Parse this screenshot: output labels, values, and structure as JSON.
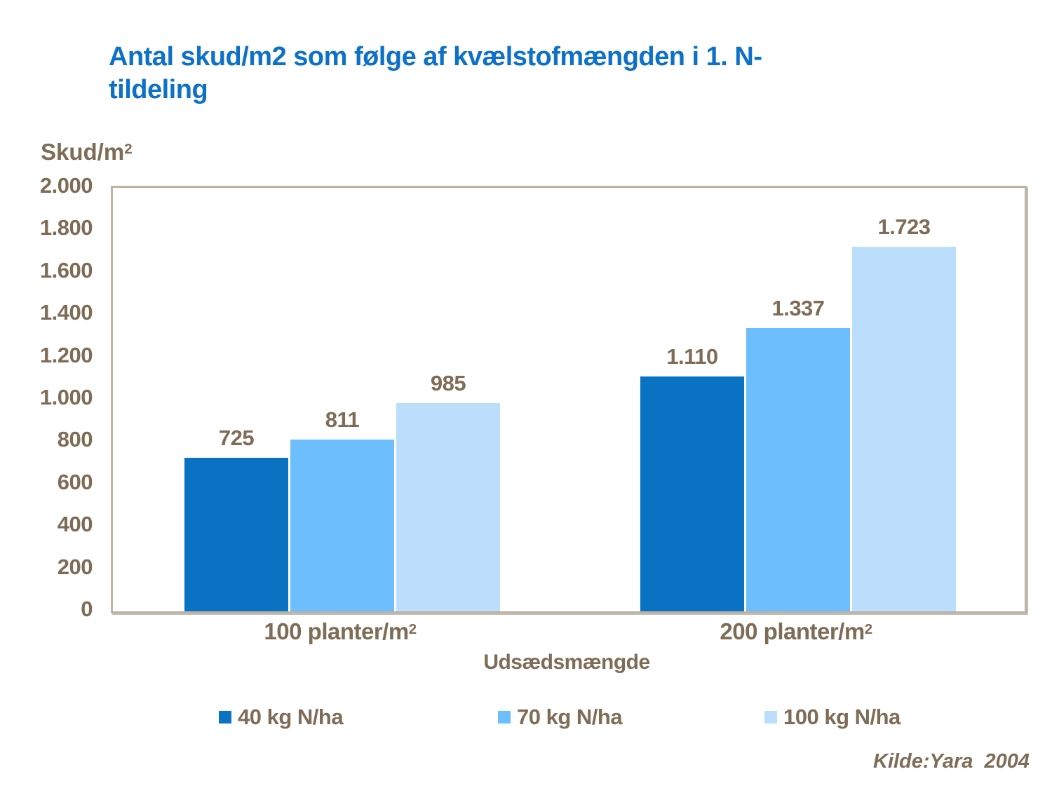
{
  "title": {
    "line1": "Antal skud/m2 som følge af kvælstofmængden i 1. N-",
    "line2": "tildeling"
  },
  "y_axis_title": {
    "base": "Skud/m",
    "sup": "2"
  },
  "source": "Kilde:Yara  2004",
  "colors": {
    "title_blue": "#0C71C7",
    "text_brown": "#7E6C56",
    "plot_border": "#BEB2A4"
  },
  "chart_data": {
    "type": "bar",
    "title": "Antal skud/m2 som følge af kvælstofmængden i 1. N-tildeling",
    "categories": [
      {
        "base": "100 planter/m",
        "sup": "2"
      },
      {
        "base": "200 planter/m",
        "sup": "2"
      }
    ],
    "series": [
      {
        "name": "40 kg N/ha",
        "color": "#0A72C3",
        "values": [
          725,
          1110
        ],
        "value_labels": [
          "725",
          "1.110"
        ]
      },
      {
        "name": "70 kg N/ha",
        "color": "#6CBEFD",
        "values": [
          811,
          1337
        ],
        "value_labels": [
          "811",
          "1.337"
        ]
      },
      {
        "name": "100 kg N/ha",
        "color": "#BADEFB",
        "values": [
          985,
          1723
        ],
        "value_labels": [
          "985",
          "1.723"
        ]
      }
    ],
    "xlabel": "Udsædsmængde",
    "ylabel": "Skud/m2",
    "ylim": [
      0,
      2000
    ],
    "ytick_labels": [
      "2.000",
      "1.800",
      "1.600",
      "1.400",
      "1.200",
      "1.000",
      "800",
      "600",
      "400",
      "200",
      "0"
    ],
    "grid": false,
    "legend_position": "bottom"
  }
}
